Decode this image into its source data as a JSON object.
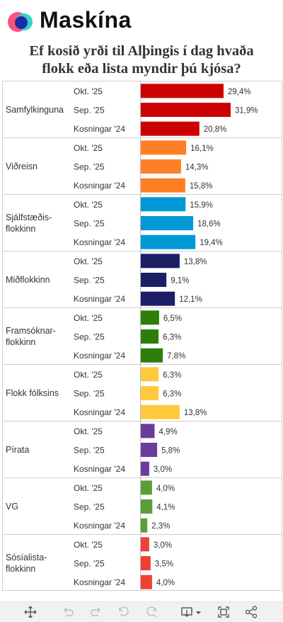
{
  "brand": {
    "name": "Maskína",
    "logo_colors": [
      "#ff4f7b",
      "#28d2c8",
      "#1a2aa8"
    ]
  },
  "title_line1": "Ef kosið yrði til Alþingis í dag hvaða",
  "title_line2": "flokk eða lista myndir þú kjósa?",
  "chart_data": {
    "type": "bar",
    "orientation": "horizontal",
    "title": "Ef kosið yrði til Alþingis í dag hvaða flokk eða lista myndir þú kjósa?",
    "xlim": [
      0,
      33
    ],
    "grid": false,
    "legend": "none",
    "groups": [
      {
        "name": "Samfylkinguna",
        "name_lines": [
          "Samfylkinguna"
        ],
        "color": "#cc0000",
        "bars": [
          {
            "label": "Okt. '25",
            "value": 29.4,
            "value_label": "29,4%"
          },
          {
            "label": "Sep. '25",
            "value": 31.9,
            "value_label": "31,9%"
          },
          {
            "label": "Kosningar '24",
            "value": 20.8,
            "value_label": "20,8%"
          }
        ]
      },
      {
        "name": "Viðreisn",
        "name_lines": [
          "Viðreisn"
        ],
        "color": "#ff7f27",
        "bars": [
          {
            "label": "Okt. '25",
            "value": 16.1,
            "value_label": "16,1%"
          },
          {
            "label": "Sep. '25",
            "value": 14.3,
            "value_label": "14,3%"
          },
          {
            "label": "Kosningar '24",
            "value": 15.8,
            "value_label": "15,8%"
          }
        ]
      },
      {
        "name": "Sjálfstæðisflokkinn",
        "name_lines": [
          "Sjálfstæðis-",
          "flokkinn"
        ],
        "color": "#0099d6",
        "bars": [
          {
            "label": "Okt. '25",
            "value": 15.9,
            "value_label": "15,9%"
          },
          {
            "label": "Sep. '25",
            "value": 18.6,
            "value_label": "18,6%"
          },
          {
            "label": "Kosningar '24",
            "value": 19.4,
            "value_label": "19,4%"
          }
        ]
      },
      {
        "name": "Miðflokkinn",
        "name_lines": [
          "Miðflokkinn"
        ],
        "color": "#1a1f66",
        "bars": [
          {
            "label": "Okt. '25",
            "value": 13.8,
            "value_label": "13,8%"
          },
          {
            "label": "Sep. '25",
            "value": 9.1,
            "value_label": "9,1%"
          },
          {
            "label": "Kosningar '24",
            "value": 12.1,
            "value_label": "12,1%"
          }
        ]
      },
      {
        "name": "Framsóknarflokkinn",
        "name_lines": [
          "Framsóknar-",
          "flokkinn"
        ],
        "color": "#2e7d0a",
        "bars": [
          {
            "label": "Okt. '25",
            "value": 6.5,
            "value_label": "6,5%"
          },
          {
            "label": "Sep. '25",
            "value": 6.3,
            "value_label": "6,3%"
          },
          {
            "label": "Kosningar '24",
            "value": 7.8,
            "value_label": "7,8%"
          }
        ]
      },
      {
        "name": "Flokk fólksins",
        "name_lines": [
          "Flokk fólksins"
        ],
        "color": "#ffc93c",
        "bars": [
          {
            "label": "Okt. '25",
            "value": 6.3,
            "value_label": "6,3%"
          },
          {
            "label": "Sep. '25",
            "value": 6.3,
            "value_label": "6,3%"
          },
          {
            "label": "Kosningar '24",
            "value": 13.8,
            "value_label": "13,8%"
          }
        ]
      },
      {
        "name": "Pírata",
        "name_lines": [
          "Pírata"
        ],
        "color": "#6a3d9a",
        "bars": [
          {
            "label": "Okt. '25",
            "value": 4.9,
            "value_label": "4,9%"
          },
          {
            "label": "Sep. '25",
            "value": 5.8,
            "value_label": "5,8%"
          },
          {
            "label": "Kosningar '24",
            "value": 3.0,
            "value_label": "3,0%"
          }
        ]
      },
      {
        "name": "VG",
        "name_lines": [
          "VG"
        ],
        "color": "#5a9e3a",
        "bars": [
          {
            "label": "Okt. '25",
            "value": 4.0,
            "value_label": "4,0%"
          },
          {
            "label": "Sep. '25",
            "value": 4.1,
            "value_label": "4,1%"
          },
          {
            "label": "Kosningar '24",
            "value": 2.3,
            "value_label": "2,3%"
          }
        ]
      },
      {
        "name": "Sósíalistaflokkinn",
        "name_lines": [
          "Sósíalista-",
          "flokkinn"
        ],
        "color": "#ee4035",
        "bars": [
          {
            "label": "Okt. '25",
            "value": 3.0,
            "value_label": "3,0%"
          },
          {
            "label": "Sep. '25",
            "value": 3.5,
            "value_label": "3,5%"
          },
          {
            "label": "Kosningar '24",
            "value": 4.0,
            "value_label": "4,0%"
          }
        ]
      }
    ]
  },
  "toolbar": {
    "icons": [
      "move-icon",
      "undo-icon",
      "redo-icon",
      "reset-icon",
      "forward-icon",
      "download-icon",
      "fullscreen-icon",
      "share-icon"
    ]
  }
}
